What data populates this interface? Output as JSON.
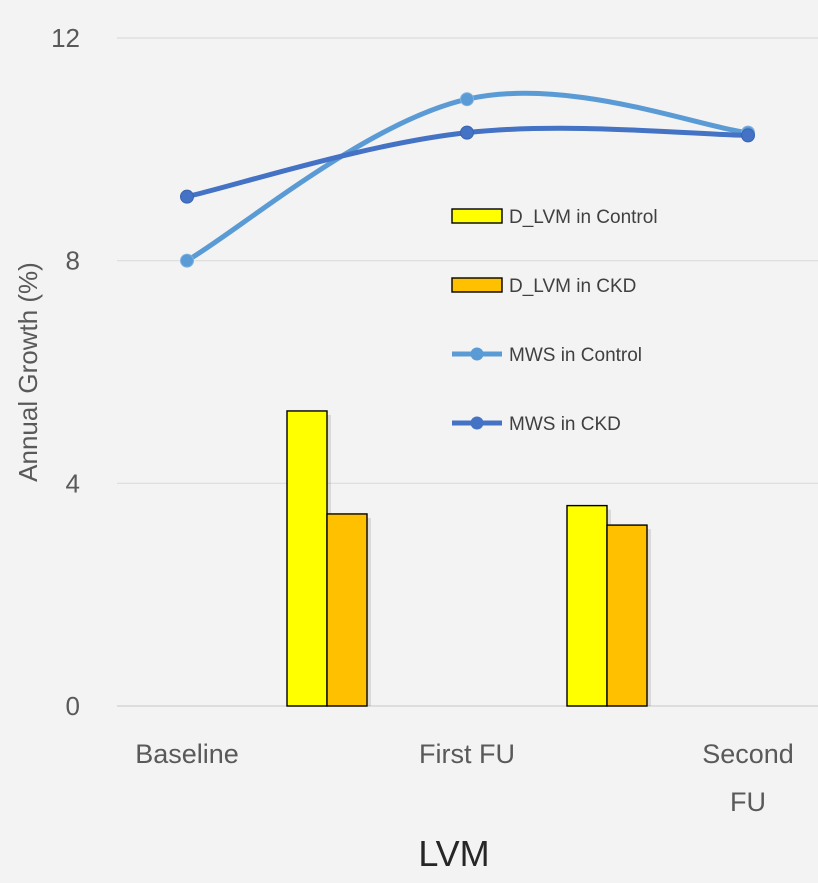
{
  "chart_data": {
    "type": "bar",
    "title": "",
    "xlabel": "LVM",
    "ylabel": "Annual Growth (%)",
    "ylim": [
      0,
      12
    ],
    "yticks": [
      0,
      4,
      8,
      12
    ],
    "grid": true,
    "legend_position": "right",
    "categories": [
      "Baseline",
      "First FU",
      "Second FU"
    ],
    "category_lines": [
      [
        "Baseline"
      ],
      [
        "First FU"
      ],
      [
        "Second",
        "FU"
      ]
    ],
    "bar_groups": [
      "Baseline–First FU",
      "First FU–Second FU"
    ],
    "bar_series": [
      {
        "name": "D_LVM in Control",
        "color": "#ffff00",
        "values": [
          5.3,
          3.6
        ]
      },
      {
        "name": "D_LVM in CKD",
        "color": "#ffc000",
        "values": [
          3.45,
          3.25
        ]
      }
    ],
    "line_series": [
      {
        "name": "MWS in Control",
        "color": "#5b9bd5",
        "values": [
          8.0,
          10.9,
          10.3
        ]
      },
      {
        "name": "MWS in CKD",
        "color": "#4472c4",
        "values": [
          9.15,
          10.3,
          10.25
        ]
      }
    ]
  }
}
